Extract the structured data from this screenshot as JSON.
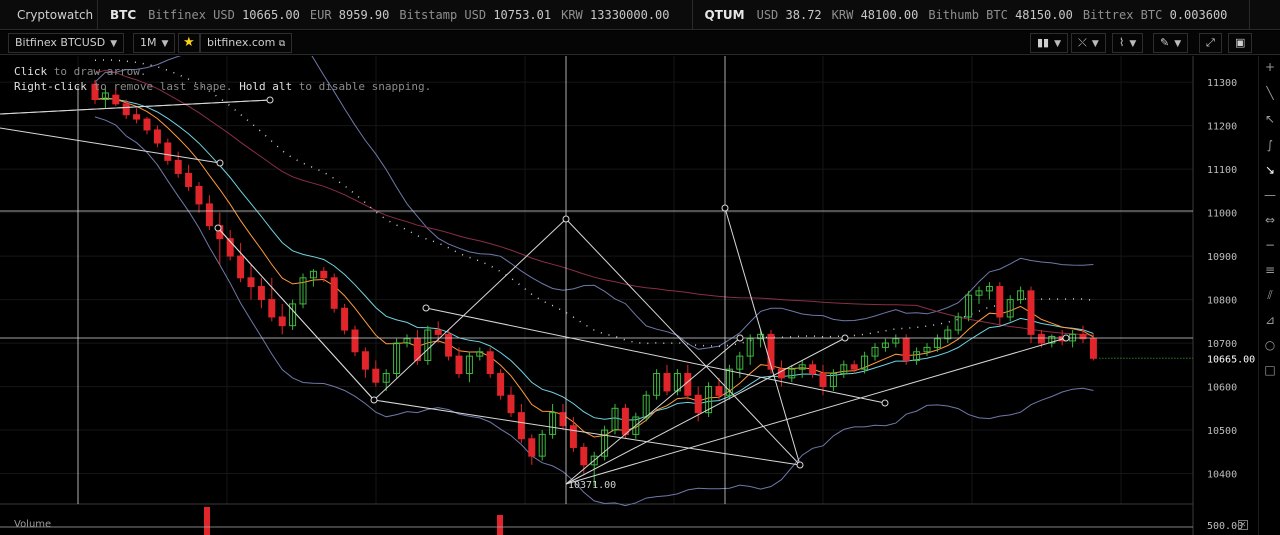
{
  "ticker": {
    "brand": "Cryptowatch",
    "groups": [
      {
        "symbol": "BTC",
        "items": [
          {
            "label": "Bitfinex USD",
            "value": "10665.00"
          },
          {
            "label": "EUR",
            "value": "8959.90"
          },
          {
            "label": "Bitstamp USD",
            "value": "10753.01"
          },
          {
            "label": "KRW",
            "value": "13330000.00"
          }
        ]
      },
      {
        "symbol": "QTUM",
        "items": [
          {
            "label": "USD",
            "value": "38.72"
          },
          {
            "label": "KRW",
            "value": "48100.00"
          },
          {
            "label": "Bithumb BTC",
            "value": "48150.00"
          },
          {
            "label": "Bittrex BTC",
            "value": "0.003600"
          }
        ]
      }
    ]
  },
  "toolbar": {
    "market": "Bitfinex BTCUSD",
    "period": "1M",
    "star_icon": "star-icon",
    "site_link": "bitfinex.com",
    "right_tools": [
      "candles-icon",
      "crosshair-icon",
      "indicators-icon",
      "draw-pencil-icon",
      "fullscreen-icon",
      "screenshot-icon"
    ]
  },
  "hint": {
    "line1_key": "Click",
    "line1_rest": " to draw arrow.",
    "line2_key": "Right-click",
    "line2_mid": " to remove last shape. ",
    "line2_key2": "Hold alt",
    "line2_rest": " to disable snapping."
  },
  "side_tools": [
    "plus-icon",
    "line-icon",
    "ray-icon",
    "curve-icon",
    "arrow-icon",
    "horizontal-line-icon",
    "measure-icon",
    "horizontal-ray-icon",
    "fib-icon",
    "pitchfork-icon",
    "fan-icon",
    "ellipse-icon",
    "rectangle-icon"
  ],
  "chart_data": {
    "type": "candlestick",
    "y_ticks": [
      11300,
      11200,
      11100,
      11000,
      10900,
      10800,
      10700,
      10600,
      10500,
      10400
    ],
    "ylim": [
      10330,
      11360
    ],
    "last_price": "10665.00",
    "low_label": "10371.00",
    "colors": {
      "up": "#3fb83f",
      "down": "#e0262b",
      "ema_fast": "#ff9a3c",
      "ema_mid": "#6fd3e0",
      "sma_slow": "#8a2f46",
      "bollinger": "#6f78a8",
      "drawings": "#d8d8d8"
    },
    "candles": [
      [
        11295,
        11305,
        11250,
        11260
      ],
      [
        11260,
        11285,
        11240,
        11275
      ],
      [
        11270,
        11290,
        11245,
        11250
      ],
      [
        11250,
        11260,
        11215,
        11225
      ],
      [
        11225,
        11240,
        11205,
        11215
      ],
      [
        11215,
        11220,
        11180,
        11190
      ],
      [
        11190,
        11200,
        11150,
        11160
      ],
      [
        11160,
        11170,
        11110,
        11120
      ],
      [
        11120,
        11140,
        11080,
        11090
      ],
      [
        11090,
        11110,
        11050,
        11060
      ],
      [
        11060,
        11070,
        11000,
        11020
      ],
      [
        11020,
        11040,
        10960,
        10970
      ],
      [
        10970,
        11000,
        10880,
        10940
      ],
      [
        10940,
        10960,
        10890,
        10900
      ],
      [
        10900,
        10930,
        10840,
        10850
      ],
      [
        10850,
        10880,
        10800,
        10830
      ],
      [
        10830,
        10850,
        10780,
        10800
      ],
      [
        10800,
        10850,
        10750,
        10760
      ],
      [
        10760,
        10790,
        10720,
        10740
      ],
      [
        10740,
        10800,
        10730,
        10790
      ],
      [
        10790,
        10860,
        10780,
        10850
      ],
      [
        10850,
        10870,
        10830,
        10865
      ],
      [
        10865,
        10875,
        10840,
        10850
      ],
      [
        10850,
        10860,
        10770,
        10780
      ],
      [
        10780,
        10790,
        10720,
        10730
      ],
      [
        10730,
        10740,
        10670,
        10680
      ],
      [
        10680,
        10690,
        10620,
        10640
      ],
      [
        10640,
        10660,
        10600,
        10610
      ],
      [
        10610,
        10640,
        10590,
        10630
      ],
      [
        10630,
        10710,
        10620,
        10700
      ],
      [
        10700,
        10720,
        10690,
        10710
      ],
      [
        10710,
        10730,
        10650,
        10660
      ],
      [
        10660,
        10740,
        10650,
        10730
      ],
      [
        10730,
        10750,
        10700,
        10720
      ],
      [
        10720,
        10730,
        10660,
        10670
      ],
      [
        10670,
        10690,
        10620,
        10630
      ],
      [
        10630,
        10680,
        10610,
        10670
      ],
      [
        10670,
        10690,
        10660,
        10680
      ],
      [
        10680,
        10690,
        10620,
        10630
      ],
      [
        10630,
        10640,
        10570,
        10580
      ],
      [
        10580,
        10600,
        10530,
        10540
      ],
      [
        10540,
        10560,
        10470,
        10480
      ],
      [
        10480,
        10490,
        10420,
        10440
      ],
      [
        10440,
        10500,
        10430,
        10490
      ],
      [
        10490,
        10560,
        10480,
        10540
      ],
      [
        10540,
        10560,
        10500,
        10510
      ],
      [
        10510,
        10530,
        10450,
        10460
      ],
      [
        10460,
        10470,
        10400,
        10420
      ],
      [
        10420,
        10450,
        10371,
        10440
      ],
      [
        10440,
        10510,
        10430,
        10500
      ],
      [
        10500,
        10560,
        10490,
        10550
      ],
      [
        10550,
        10560,
        10480,
        10490
      ],
      [
        10490,
        10540,
        10480,
        10530
      ],
      [
        10530,
        10590,
        10520,
        10580
      ],
      [
        10580,
        10640,
        10570,
        10630
      ],
      [
        10630,
        10650,
        10580,
        10590
      ],
      [
        10590,
        10640,
        10580,
        10630
      ],
      [
        10630,
        10650,
        10570,
        10580
      ],
      [
        10580,
        10600,
        10520,
        10540
      ],
      [
        10540,
        10610,
        10530,
        10600
      ],
      [
        10600,
        10620,
        10570,
        10580
      ],
      [
        10580,
        10650,
        10570,
        10640
      ],
      [
        10640,
        10680,
        10620,
        10670
      ],
      [
        10670,
        10720,
        10650,
        10710
      ],
      [
        10710,
        10730,
        10690,
        10720
      ],
      [
        10720,
        10730,
        10630,
        10640
      ],
      [
        10640,
        10660,
        10600,
        10620
      ],
      [
        10620,
        10650,
        10610,
        10640
      ],
      [
        10640,
        10660,
        10620,
        10650
      ],
      [
        10650,
        10660,
        10620,
        10630
      ],
      [
        10630,
        10650,
        10580,
        10600
      ],
      [
        10600,
        10640,
        10590,
        10630
      ],
      [
        10630,
        10660,
        10620,
        10650
      ],
      [
        10650,
        10660,
        10630,
        10640
      ],
      [
        10640,
        10680,
        10630,
        10670
      ],
      [
        10670,
        10700,
        10660,
        10690
      ],
      [
        10690,
        10710,
        10680,
        10700
      ],
      [
        10700,
        10720,
        10690,
        10710
      ],
      [
        10710,
        10720,
        10650,
        10660
      ],
      [
        10660,
        10690,
        10650,
        10680
      ],
      [
        10680,
        10700,
        10670,
        10690
      ],
      [
        10690,
        10720,
        10680,
        10710
      ],
      [
        10710,
        10740,
        10700,
        10730
      ],
      [
        10730,
        10770,
        10720,
        10760
      ],
      [
        10760,
        10820,
        10750,
        10810
      ],
      [
        10810,
        10830,
        10790,
        10820
      ],
      [
        10820,
        10840,
        10800,
        10830
      ],
      [
        10830,
        10840,
        10740,
        10760
      ],
      [
        10760,
        10810,
        10750,
        10800
      ],
      [
        10800,
        10830,
        10790,
        10820
      ],
      [
        10820,
        10830,
        10700,
        10720
      ],
      [
        10720,
        10730,
        10690,
        10700
      ],
      [
        10700,
        10720,
        10690,
        10715
      ],
      [
        10715,
        10730,
        10695,
        10705
      ],
      [
        10705,
        10730,
        10690,
        10720
      ],
      [
        10720,
        10740,
        10700,
        10710
      ],
      [
        10710,
        10720,
        10660,
        10665
      ]
    ],
    "volume_tick": "500.00",
    "volume_label": "Volume"
  }
}
